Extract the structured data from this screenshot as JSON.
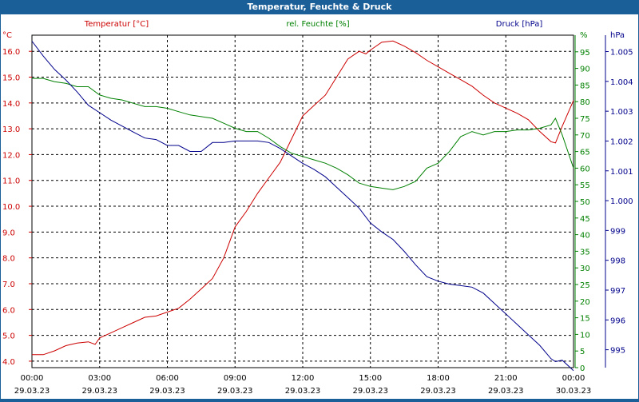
{
  "window": {
    "title": "Temperatur, Feuchte & Druck"
  },
  "chart_data": {
    "type": "line",
    "title": "Temperatur, Feuchte & Druck",
    "xlabel": "",
    "grid": true,
    "x_ticks": [
      {
        "time": "00:00",
        "date": "29.03.23"
      },
      {
        "time": "03:00",
        "date": "29.03.23"
      },
      {
        "time": "06:00",
        "date": "29.03.23"
      },
      {
        "time": "09:00",
        "date": "29.03.23"
      },
      {
        "time": "12:00",
        "date": "29.03.23"
      },
      {
        "time": "15:00",
        "date": "29.03.23"
      },
      {
        "time": "18:00",
        "date": "29.03.23"
      },
      {
        "time": "21:00",
        "date": "29.03.23"
      },
      {
        "time": "00:00",
        "date": "30.03.23"
      }
    ],
    "axes": {
      "temperature": {
        "label": "Temperatur [°C]",
        "unit": "°C",
        "color": "#cc0000",
        "range": [
          3.75,
          16.625
        ],
        "ticks": [
          "4.0",
          "5.0",
          "6.0",
          "7.0",
          "8.0",
          "9.0",
          "10.0",
          "11.0",
          "12.0",
          "13.0",
          "14.0",
          "15.0",
          "16.0"
        ]
      },
      "humidity": {
        "label": "rel. Feuchte [%]",
        "unit": "%",
        "color": "#008000",
        "range": [
          0,
          100
        ],
        "ticks": [
          "0",
          "5",
          "10",
          "15",
          "20",
          "25",
          "30",
          "35",
          "40",
          "45",
          "50",
          "55",
          "60",
          "65",
          "70",
          "75",
          "80",
          "85",
          "90",
          "95"
        ]
      },
      "pressure": {
        "label": "Druck [hPa]",
        "unit": "hPa",
        "color": "#00008b",
        "range": [
          994.4,
          1005.55
        ],
        "ticks": [
          "995",
          "996",
          "997",
          "998",
          "999",
          "1.000",
          "1.001",
          "1.002",
          "1.003",
          "1.004",
          "1.005"
        ]
      }
    },
    "series": [
      {
        "name": "Temperatur [°C]",
        "axis": "temperature",
        "color": "#cc0000",
        "x": [
          0,
          0.5,
          1,
          1.5,
          2,
          2.5,
          2.8,
          3,
          3.5,
          4,
          4.5,
          5,
          5.5,
          6,
          6.5,
          7,
          7.5,
          8,
          8.5,
          9,
          9.5,
          10,
          10.5,
          11,
          11.5,
          12,
          12.5,
          13,
          13.5,
          14,
          14.5,
          14.8,
          15,
          15.5,
          16,
          16.5,
          17,
          17.5,
          18,
          18.5,
          19,
          19.5,
          20,
          20.5,
          21,
          21.5,
          22,
          22.5,
          23,
          23.2,
          23.5,
          24
        ],
        "values": [
          4.25,
          4.25,
          4.4,
          4.6,
          4.7,
          4.75,
          4.65,
          4.9,
          5.1,
          5.3,
          5.5,
          5.7,
          5.75,
          5.9,
          6.05,
          6.4,
          6.8,
          7.2,
          8.0,
          9.2,
          9.8,
          10.5,
          11.1,
          11.7,
          12.6,
          13.5,
          13.9,
          14.3,
          15.0,
          15.7,
          16.0,
          15.9,
          16.05,
          16.35,
          16.4,
          16.2,
          15.95,
          15.65,
          15.4,
          15.15,
          14.9,
          14.65,
          14.3,
          14.0,
          13.8,
          13.6,
          13.35,
          12.9,
          12.5,
          12.45,
          13.1,
          14.1
        ]
      },
      {
        "name": "rel. Feuchte [%]",
        "axis": "humidity",
        "color": "#008000",
        "x": [
          0,
          0.5,
          1,
          1.5,
          2,
          2.5,
          3,
          3.5,
          4,
          4.5,
          5,
          5.5,
          6,
          6.5,
          7,
          7.5,
          8,
          8.5,
          9,
          9.5,
          10,
          10.5,
          11,
          11.5,
          12,
          12.5,
          13,
          13.5,
          14,
          14.5,
          15,
          15.5,
          16,
          16.5,
          17,
          17.5,
          18,
          18.5,
          19,
          19.5,
          20,
          20.5,
          21,
          21.5,
          22,
          22.5,
          23,
          23.2,
          23.5,
          24
        ],
        "values": [
          87,
          87,
          86,
          85.5,
          84.5,
          84.5,
          82,
          81,
          80.5,
          79.5,
          78.5,
          78.5,
          78,
          77,
          76,
          75.5,
          75,
          73.5,
          72,
          71,
          71,
          69,
          66.5,
          64.5,
          63.5,
          62.5,
          61.5,
          60,
          58,
          55.5,
          54.5,
          54,
          53.5,
          54.5,
          56,
          60,
          61.5,
          65,
          69.5,
          71,
          70,
          71,
          71,
          71.5,
          71.5,
          72,
          73,
          75,
          70,
          60
        ]
      },
      {
        "name": "Druck [hPa]",
        "axis": "pressure",
        "color": "#00008b",
        "x": [
          0,
          0.5,
          1,
          1.5,
          2,
          2.5,
          3,
          3.5,
          4,
          4.5,
          5,
          5.5,
          6,
          6.5,
          7,
          7.5,
          8,
          8.5,
          9,
          9.5,
          10,
          10.5,
          11,
          11.5,
          12,
          12.5,
          13,
          13.5,
          14,
          14.5,
          15,
          15.5,
          16,
          16.5,
          17,
          17.5,
          18,
          18.5,
          19,
          19.5,
          20,
          20.5,
          21,
          21.5,
          22,
          22.5,
          23,
          23.2,
          23.5,
          24
        ],
        "values": [
          1005.35,
          1004.85,
          1004.4,
          1004.05,
          1003.65,
          1003.2,
          1002.95,
          1002.7,
          1002.5,
          1002.3,
          1002.1,
          1002.05,
          1001.85,
          1001.85,
          1001.65,
          1001.65,
          1001.95,
          1001.95,
          1002.0,
          1002.0,
          1002.0,
          1001.95,
          1001.75,
          1001.5,
          1001.25,
          1001.05,
          1000.8,
          1000.45,
          1000.1,
          999.75,
          999.25,
          998.95,
          998.7,
          998.3,
          997.85,
          997.45,
          997.3,
          997.2,
          997.15,
          997.1,
          996.9,
          996.55,
          996.2,
          995.85,
          995.5,
          995.15,
          994.7,
          994.6,
          994.65,
          994.3
        ]
      }
    ]
  }
}
